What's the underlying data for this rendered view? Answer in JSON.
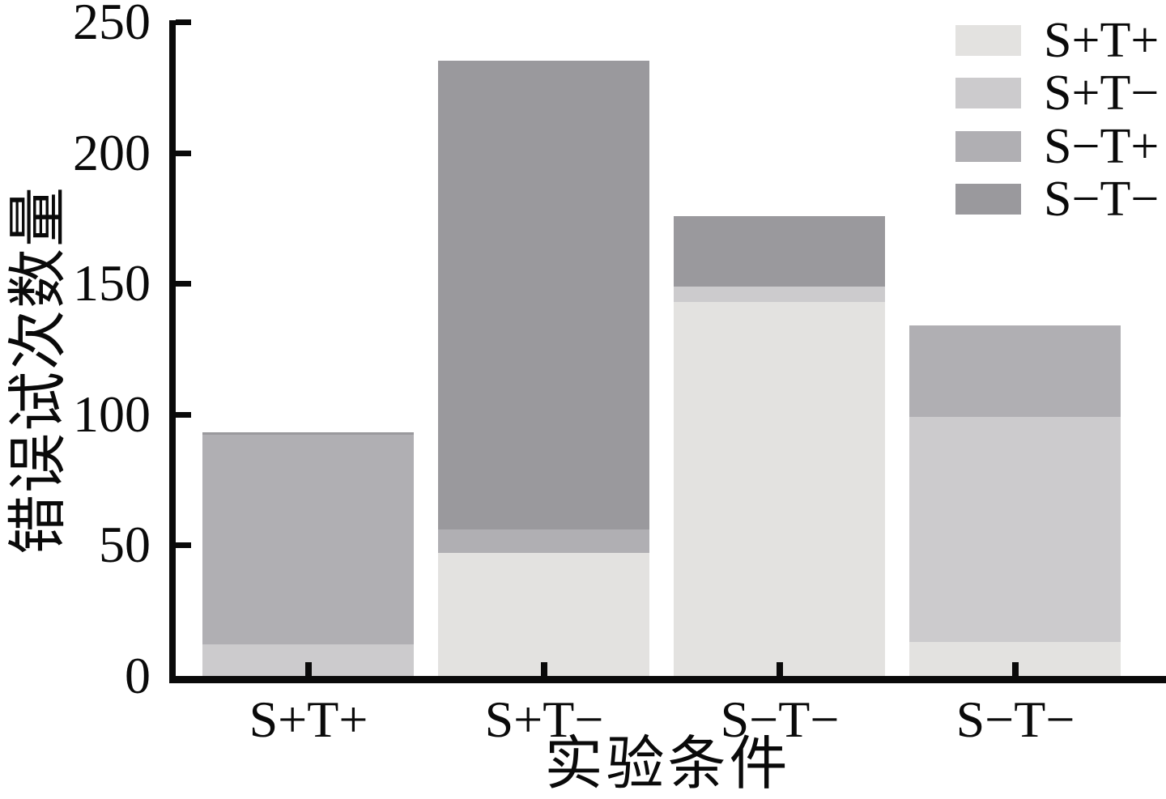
{
  "figure": {
    "background": "#ffffff",
    "text_color": "#0a0a0a",
    "axis_color": "#0a0a0a"
  },
  "chart_data": {
    "type": "bar",
    "stacked": true,
    "title": "",
    "xlabel": "实验条件",
    "ylabel": "错误试次数量",
    "ylim": [
      0,
      250
    ],
    "yticks": [
      0,
      50,
      100,
      150,
      200,
      250
    ],
    "grid": false,
    "categories": [
      "S+T+",
      "S+T−",
      "S−T−",
      "S−T−"
    ],
    "series": [
      {
        "name": "S+T+",
        "color": "#e3e2e0",
        "values": [
          0,
          47,
          143,
          13
        ]
      },
      {
        "name": "S+T−",
        "color": "#cccbcd",
        "values": [
          12,
          0,
          6,
          86
        ]
      },
      {
        "name": "S−T+",
        "color": "#b0afb3",
        "values": [
          80,
          9,
          0,
          35
        ]
      },
      {
        "name": "S−T−",
        "color": "#9a999d",
        "values": [
          1,
          179,
          27,
          0
        ]
      }
    ],
    "legend": {
      "position": "top-right",
      "entries": [
        "S+T+",
        "S+T−",
        "S−T+",
        "S−T−"
      ]
    }
  }
}
